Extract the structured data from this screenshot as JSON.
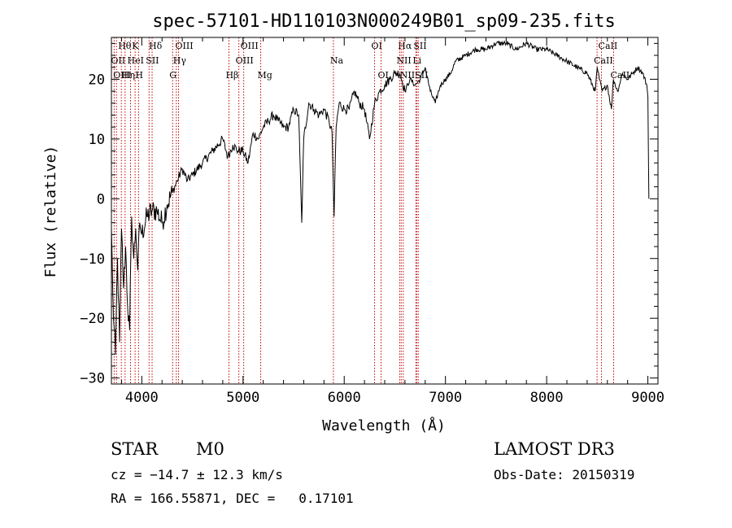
{
  "chart_data": {
    "type": "line",
    "title": "spec-57101-HD110103N000249B01_sp09-235.fits",
    "xlabel": "Wavelength (Å)",
    "ylabel": "Flux (relative)",
    "xlim": [
      3700,
      9100
    ],
    "ylim": [
      -31,
      27
    ],
    "xticks": [
      4000,
      5000,
      6000,
      7000,
      8000,
      9000
    ],
    "yticks": [
      -30,
      -20,
      -10,
      0,
      10,
      20
    ],
    "grid": false,
    "series": [
      {
        "x": [
          3700,
          3720,
          3740,
          3760,
          3780,
          3800,
          3820,
          3840,
          3860,
          3880,
          3900,
          3920,
          3940,
          3960,
          3980,
          4000,
          4050,
          4100,
          4150,
          4200,
          4250,
          4300,
          4350,
          4400,
          4450,
          4500,
          4600,
          4700,
          4800,
          4850,
          4900,
          4950,
          5000,
          5050,
          5100,
          5150,
          5200,
          5250,
          5300,
          5350,
          5400,
          5450,
          5500,
          5550,
          5580,
          5600,
          5650,
          5700,
          5750,
          5800,
          5850,
          5880,
          5900,
          5920,
          5950,
          6000,
          6050,
          6100,
          6150,
          6200,
          6250,
          6300,
          6350,
          6400,
          6450,
          6500,
          6550,
          6600,
          6650,
          6700,
          6750,
          6800,
          6850,
          6900,
          6950,
          7000,
          7050,
          7100,
          7200,
          7300,
          7400,
          7500,
          7600,
          7700,
          7800,
          7900,
          8000,
          8100,
          8200,
          8300,
          8400,
          8480,
          8500,
          8520,
          8550,
          8600,
          8640,
          8660,
          8700,
          8750,
          8800,
          8850,
          8900,
          8950,
          8990,
          9000,
          9010
        ],
        "y": [
          -5,
          -20,
          -26,
          -10,
          -24,
          -5,
          -15,
          -8,
          -18,
          -22,
          -3,
          -10,
          -5,
          -12,
          -4,
          -6,
          -3,
          -2,
          -2,
          -4,
          -1,
          1,
          3,
          5,
          3,
          4,
          6,
          8,
          10,
          7,
          9,
          8,
          8,
          6,
          11,
          10,
          12,
          13,
          14,
          13,
          12,
          12,
          15,
          14,
          -4,
          10,
          16,
          15,
          14,
          15,
          13,
          11,
          -3,
          12,
          16,
          15,
          15,
          18,
          16,
          15,
          10,
          16,
          18,
          19,
          20,
          21,
          21,
          18,
          20,
          19,
          20,
          22,
          18,
          16,
          19,
          20,
          21,
          23,
          24,
          25,
          25,
          26,
          26,
          25,
          26,
          25,
          25,
          24,
          23,
          22,
          21,
          18,
          22,
          20,
          18,
          19,
          15,
          20,
          18,
          21,
          20,
          21,
          22,
          21,
          19,
          17,
          0
        ],
        "color": "#000000"
      }
    ],
    "emission_lines": [
      {
        "label": "Hθ",
        "x": 3798,
        "row": 0
      },
      {
        "label": "OII",
        "x": 3727,
        "row": 1
      },
      {
        "label": "OIII",
        "x": 3750,
        "row": 2
      },
      {
        "label": "Hη",
        "x": 3835,
        "row": 2
      },
      {
        "label": "K",
        "x": 3934,
        "row": 0
      },
      {
        "label": "HeI",
        "x": 3889,
        "row": 1
      },
      {
        "label": "H",
        "x": 3968,
        "row": 2
      },
      {
        "label": "Hδ",
        "x": 4102,
        "row": 0
      },
      {
        "label": "SII",
        "x": 4072,
        "row": 1
      },
      {
        "label": "OIII",
        "x": 4363,
        "row": 0
      },
      {
        "label": "Hγ",
        "x": 4341,
        "row": 1
      },
      {
        "label": "G",
        "x": 4305,
        "row": 2
      },
      {
        "label": "OIII",
        "x": 5007,
        "row": 0
      },
      {
        "label": "OIII",
        "x": 4959,
        "row": 1
      },
      {
        "label": "Hβ",
        "x": 4861,
        "row": 2
      },
      {
        "label": "Mg",
        "x": 5175,
        "row": 2
      },
      {
        "label": "Na",
        "x": 5893,
        "row": 1
      },
      {
        "label": "OI",
        "x": 6300,
        "row": 0
      },
      {
        "label": "OI",
        "x": 6364,
        "row": 2
      },
      {
        "label": "Hα",
        "x": 6563,
        "row": 0
      },
      {
        "label": "SII",
        "x": 6716,
        "row": 0
      },
      {
        "label": "NII",
        "x": 6548,
        "row": 1
      },
      {
        "label": "Li",
        "x": 6708,
        "row": 1
      },
      {
        "label": "NII",
        "x": 6583,
        "row": 2
      },
      {
        "label": "SII",
        "x": 6731,
        "row": 2
      },
      {
        "label": "CaII",
        "x": 8542,
        "row": 0
      },
      {
        "label": "CaII",
        "x": 8498,
        "row": 1
      },
      {
        "label": "CaII",
        "x": 8662,
        "row": 2
      }
    ]
  },
  "info": {
    "object_type": "STAR",
    "subclass": "M0",
    "survey": "LAMOST DR3",
    "redshift": "cz = −14.7 ± 12.3 km/s",
    "obs_date": "Obs-Date: 20150319",
    "coords": "RA = 166.55871, DEC =   0.17101"
  }
}
